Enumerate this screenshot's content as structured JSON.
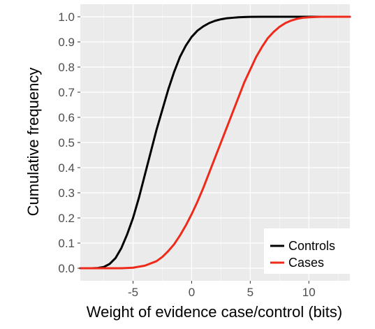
{
  "chart_data": {
    "type": "line",
    "title": "",
    "xlabel": "Weight of evidence case/control (bits)",
    "ylabel": "Cumulative frequency",
    "xlim": [
      -9.5,
      13.5
    ],
    "ylim": [
      -0.05,
      1.05
    ],
    "x_ticks": [
      -5,
      0,
      5,
      10
    ],
    "y_ticks": [
      0.0,
      0.1,
      0.2,
      0.3,
      0.4,
      0.5,
      0.6,
      0.7,
      0.8,
      0.9,
      1.0
    ],
    "x_tick_labels": [
      "-5",
      "0",
      "5",
      "10"
    ],
    "y_tick_labels": [
      "0.0",
      "0.1",
      "0.2",
      "0.3",
      "0.4",
      "0.5",
      "0.6",
      "0.7",
      "0.8",
      "0.9",
      "1.0"
    ],
    "grid": true,
    "legend_position": "bottom-right",
    "series": [
      {
        "name": "Controls",
        "color": "#000000",
        "x": [
          -9.5,
          -8.5,
          -8.0,
          -7.5,
          -7.0,
          -6.5,
          -6.0,
          -5.5,
          -5.0,
          -4.5,
          -4.0,
          -3.5,
          -3.0,
          -2.5,
          -2.0,
          -1.5,
          -1.0,
          -0.5,
          0.0,
          0.5,
          1.0,
          1.5,
          2.0,
          2.5,
          3.0,
          3.5,
          4.0,
          4.5,
          5.0,
          6.0,
          7.0,
          8.0,
          9.0,
          10.0,
          11.0,
          13.5
        ],
        "y": [
          0.0,
          0.0,
          0.001,
          0.005,
          0.017,
          0.04,
          0.08,
          0.135,
          0.2,
          0.28,
          0.37,
          0.46,
          0.55,
          0.63,
          0.71,
          0.78,
          0.84,
          0.885,
          0.92,
          0.945,
          0.962,
          0.975,
          0.984,
          0.99,
          0.994,
          0.996,
          0.998,
          0.999,
          0.9995,
          1.0,
          1.0,
          1.0,
          1.0,
          1.0,
          1.0,
          1.0
        ]
      },
      {
        "name": "Cases",
        "color": "#ee2a1b",
        "x": [
          -9.5,
          -6.0,
          -5.0,
          -4.0,
          -3.0,
          -2.5,
          -2.0,
          -1.5,
          -1.0,
          -0.5,
          0.0,
          0.5,
          1.0,
          1.5,
          2.0,
          2.5,
          3.0,
          3.5,
          4.0,
          4.5,
          5.0,
          5.5,
          6.0,
          6.5,
          7.0,
          7.5,
          8.0,
          8.5,
          9.0,
          9.5,
          10.0,
          10.5,
          11.0,
          11.5,
          12.0,
          13.5
        ],
        "y": [
          0.0,
          0.0,
          0.002,
          0.01,
          0.028,
          0.045,
          0.068,
          0.095,
          0.13,
          0.17,
          0.215,
          0.265,
          0.32,
          0.38,
          0.44,
          0.5,
          0.56,
          0.62,
          0.68,
          0.74,
          0.79,
          0.84,
          0.88,
          0.915,
          0.94,
          0.96,
          0.975,
          0.985,
          0.992,
          0.996,
          0.998,
          0.999,
          1.0,
          1.0,
          1.0,
          1.0
        ]
      }
    ]
  }
}
